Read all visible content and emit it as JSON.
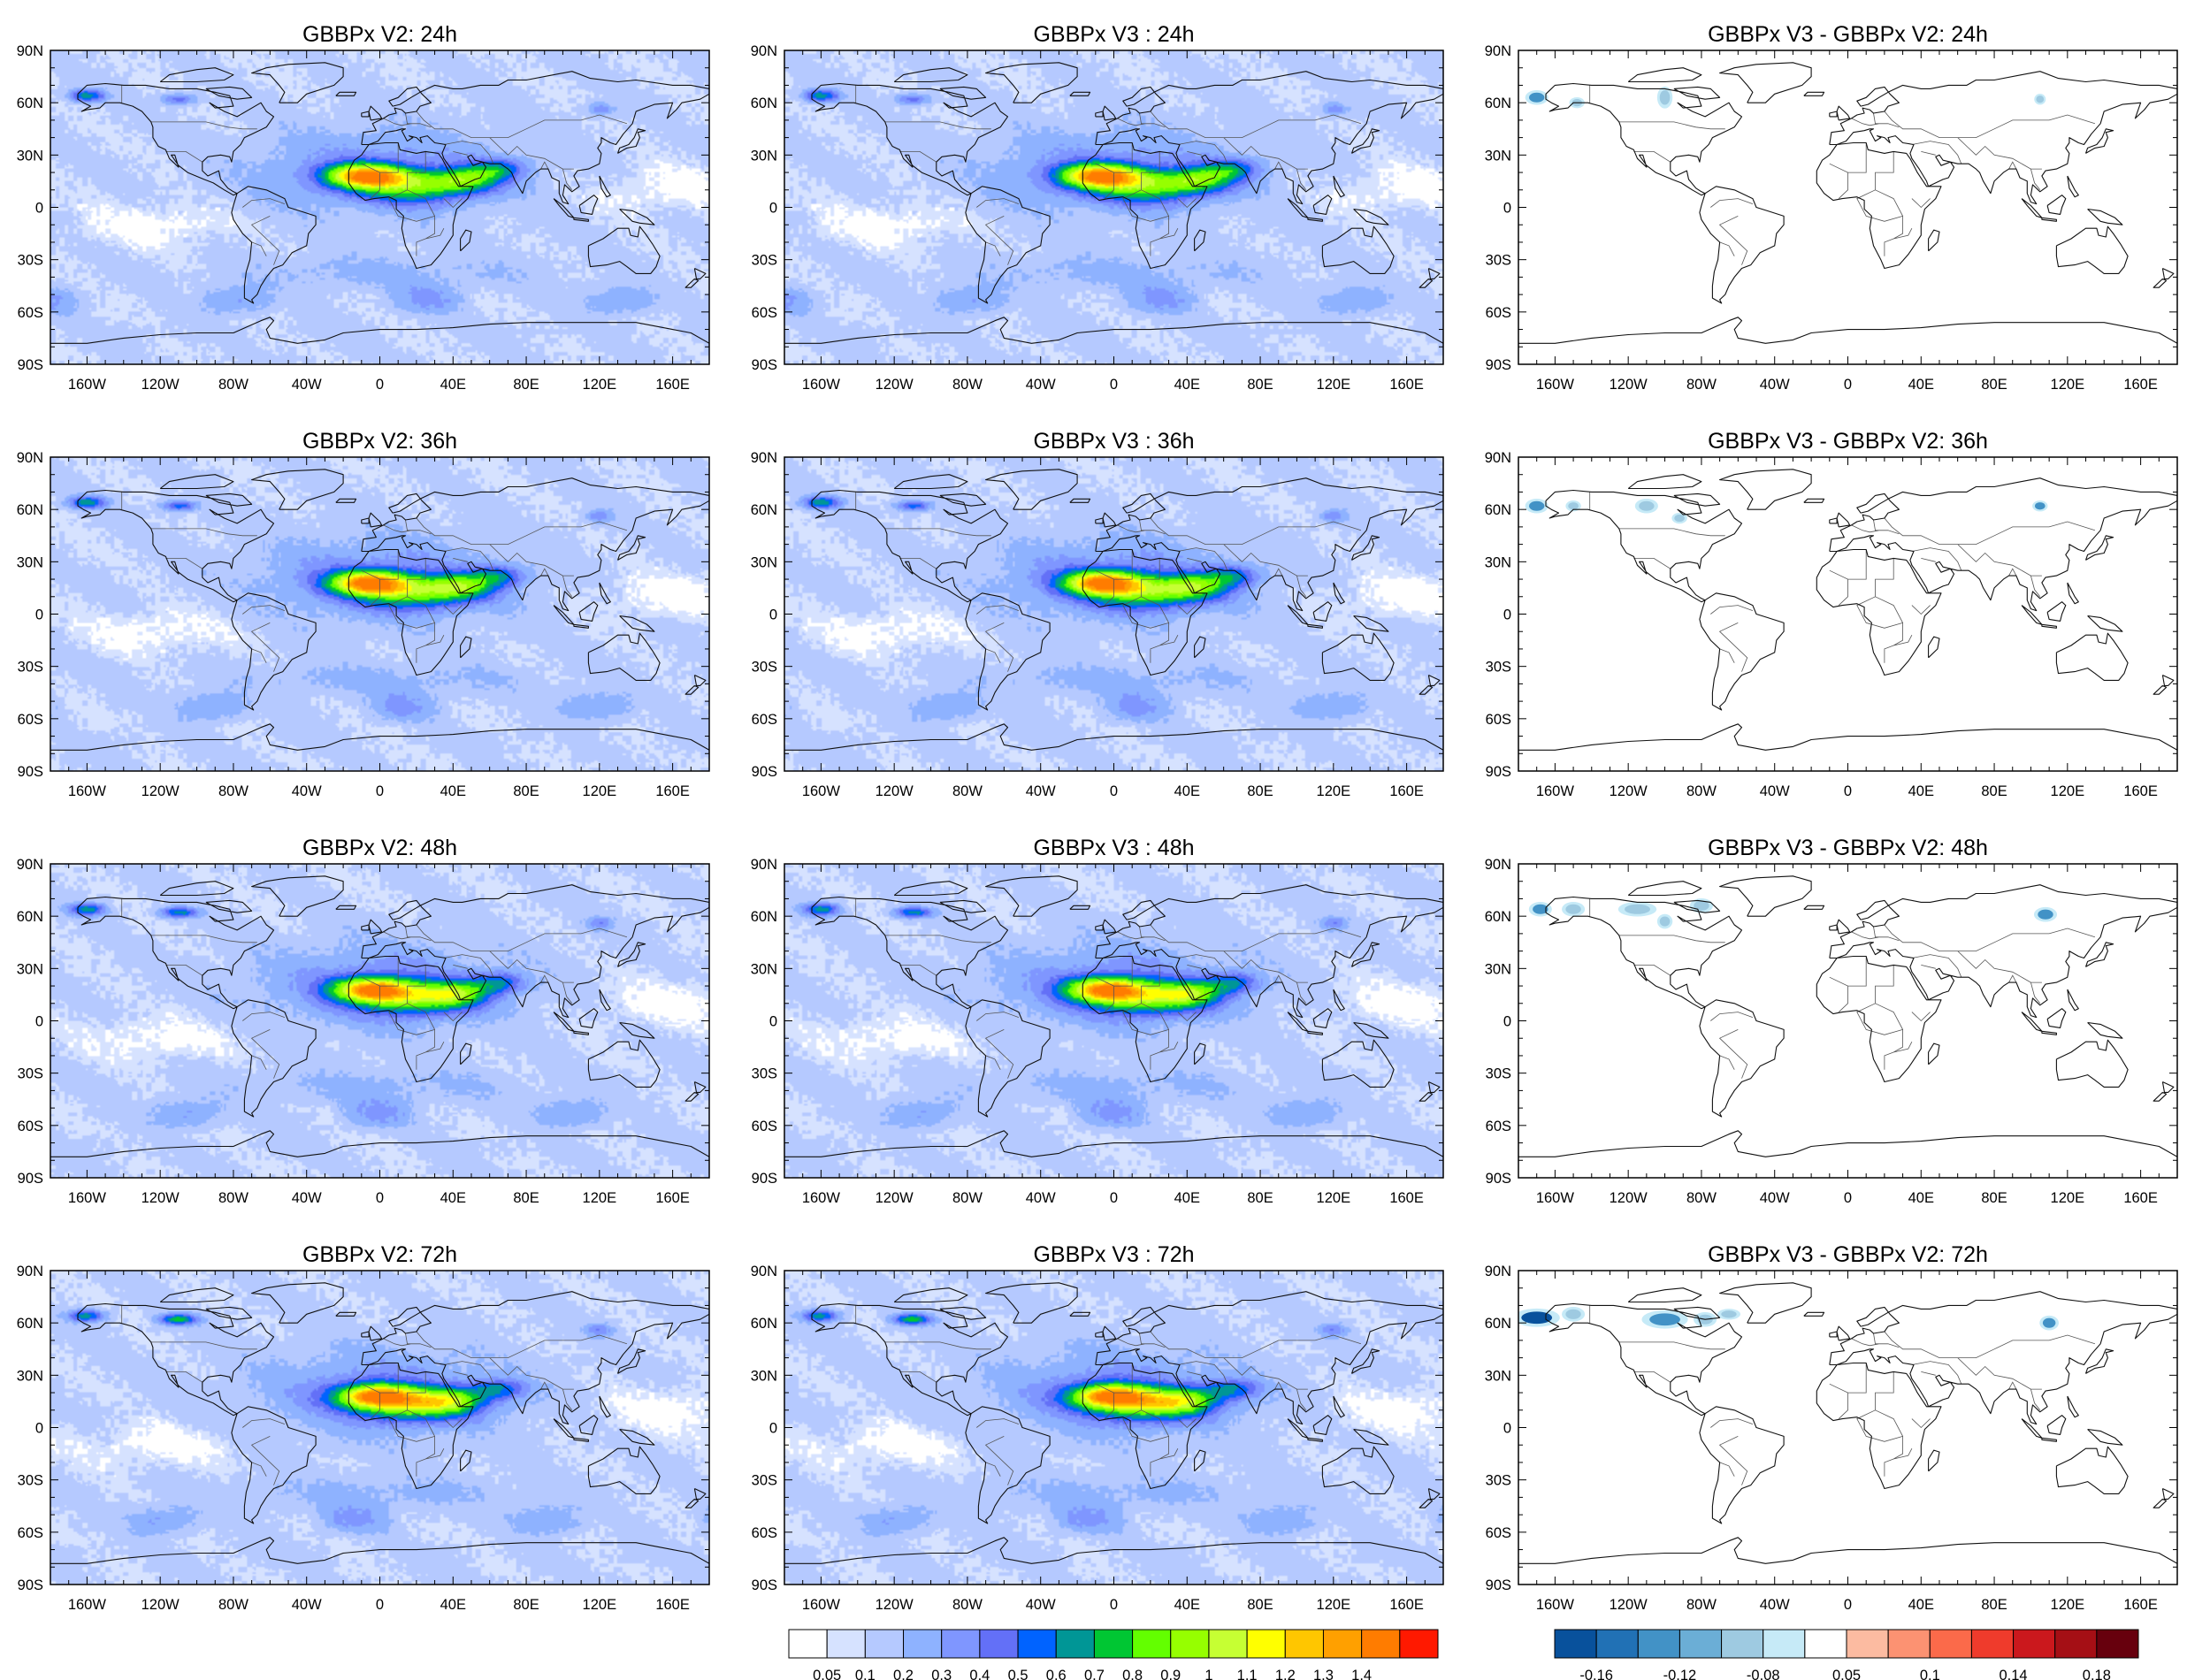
{
  "panels": [
    {
      "title": "GBBPx V2: 24h",
      "kind": "field",
      "variant": 0
    },
    {
      "title": "GBBPx V3 : 24h",
      "kind": "field",
      "variant": 0
    },
    {
      "title": "GBBPx V3 - GBBPx V2: 24h",
      "kind": "diff",
      "variant": 0
    },
    {
      "title": "GBBPx V2: 36h",
      "kind": "field",
      "variant": 1
    },
    {
      "title": "GBBPx V3 : 36h",
      "kind": "field",
      "variant": 1
    },
    {
      "title": "GBBPx V3 - GBBPx V2: 36h",
      "kind": "diff",
      "variant": 1
    },
    {
      "title": "GBBPx V2: 48h",
      "kind": "field",
      "variant": 2
    },
    {
      "title": "GBBPx V3 : 48h",
      "kind": "field",
      "variant": 2
    },
    {
      "title": "GBBPx V3 - GBBPx V2: 48h",
      "kind": "diff",
      "variant": 2
    },
    {
      "title": "GBBPx V2: 72h",
      "kind": "field",
      "variant": 3
    },
    {
      "title": "GBBPx V3 : 72h",
      "kind": "field",
      "variant": 3
    },
    {
      "title": "GBBPx V3 - GBBPx V2: 72h",
      "kind": "diff",
      "variant": 3
    }
  ],
  "lat_ticks": [
    {
      "label": "90N",
      "value": 90
    },
    {
      "label": "60N",
      "value": 60
    },
    {
      "label": "30N",
      "value": 30
    },
    {
      "label": "0",
      "value": 0
    },
    {
      "label": "30S",
      "value": -30
    },
    {
      "label": "60S",
      "value": -60
    },
    {
      "label": "90S",
      "value": -90
    }
  ],
  "lon_ticks": [
    {
      "label": "160W",
      "value": -160
    },
    {
      "label": "120W",
      "value": -120
    },
    {
      "label": "80W",
      "value": -80
    },
    {
      "label": "40W",
      "value": -40
    },
    {
      "label": "0",
      "value": 0
    },
    {
      "label": "40E",
      "value": 40
    },
    {
      "label": "80E",
      "value": 80
    },
    {
      "label": "120E",
      "value": 120
    },
    {
      "label": "160E",
      "value": 160
    }
  ],
  "colorbar_main": {
    "colors": [
      "#ffffff",
      "#d6e2ff",
      "#b5c9ff",
      "#8eb2ff",
      "#7f96ff",
      "#6370f7",
      "#0063ff",
      "#009696",
      "#00c633",
      "#63ff00",
      "#96ff00",
      "#c6ff33",
      "#ffff00",
      "#ffc600",
      "#ffa000",
      "#ff7c00",
      "#ff1900"
    ],
    "labels": [
      "0.05",
      "0.1",
      "0.2",
      "0.3",
      "0.4",
      "0.5",
      "0.6",
      "0.7",
      "0.8",
      "0.9",
      "1",
      "1.1",
      "1.2",
      "1.3",
      "1.4"
    ]
  },
  "colorbar_diff": {
    "colors": [
      "#08519c",
      "#2171b5",
      "#4292c6",
      "#6baed6",
      "#9ecae1",
      "#c6eaf7",
      "#ffffff",
      "#fcbba1",
      "#fc9272",
      "#fb6a4a",
      "#ef3b2c",
      "#cb181d",
      "#a50f15",
      "#67000d"
    ],
    "labels": [
      "-0.16",
      "-0.12",
      "-0.08",
      "0.05",
      "0.1",
      "0.14",
      "0.18"
    ]
  }
}
